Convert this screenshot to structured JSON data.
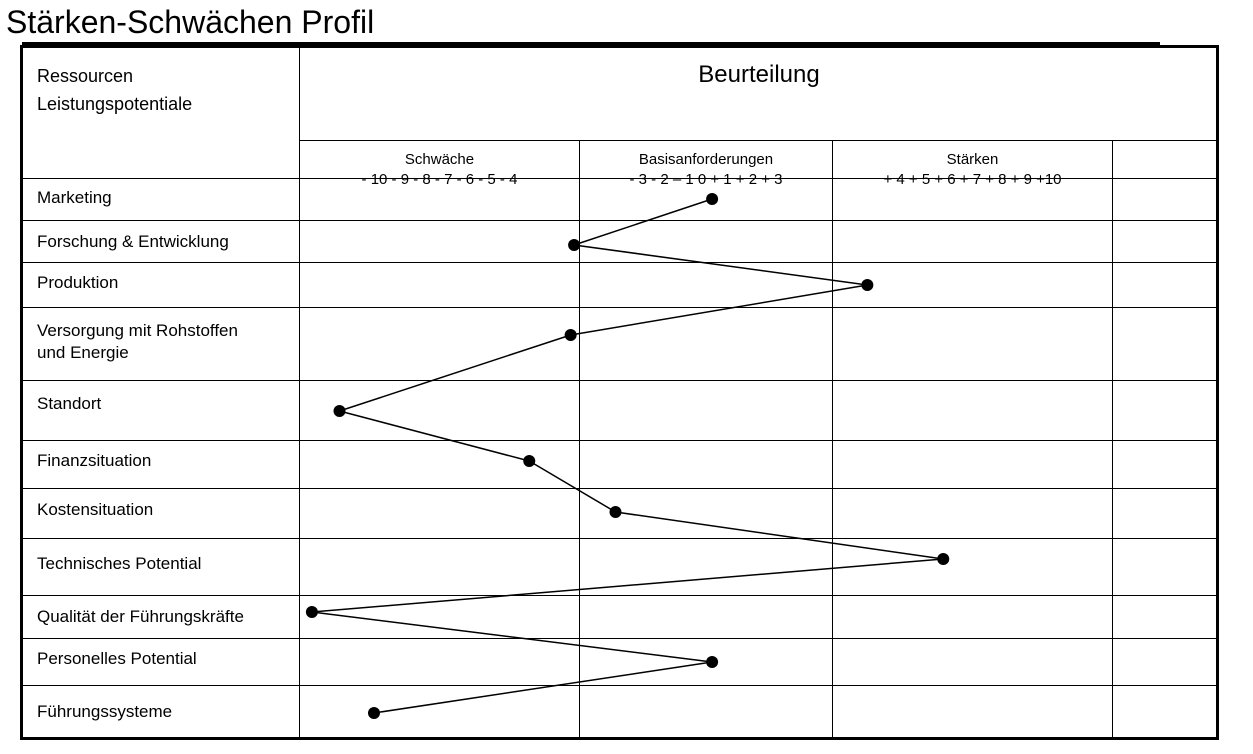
{
  "title": "Stärken-Schwächen Profil",
  "header": {
    "col1_line1": "Ressourcen",
    "col1_line2": "Leistungspotentiale",
    "assessment": "Beurteilung"
  },
  "bands": [
    {
      "label": "Schwäche",
      "scale": "- 10  - 9  - 8  - 7  - 6  - 5  - 4"
    },
    {
      "label": "Basisanforderungen",
      "scale": "- 3  - 2  – 1  0  + 1  + 2  + 3"
    },
    {
      "label": "Stärken",
      "scale": "+ 4  + 5  + 6  + 7  + 8  + 9  +10"
    }
  ],
  "rows": [
    {
      "line1": "Marketing",
      "line2": ""
    },
    {
      "line1": "Forschung & Entwicklung",
      "line2": ""
    },
    {
      "line1": "Produktion",
      "line2": ""
    },
    {
      "line1": "Versorgung mit Rohstoffen",
      "line2": "und Energie"
    },
    {
      "line1": "Standort",
      "line2": ""
    },
    {
      "line1": "Finanzsituation",
      "line2": ""
    },
    {
      "line1": "Kostensituation",
      "line2": ""
    },
    {
      "line1": "Technisches Potential",
      "line2": ""
    },
    {
      "line1": "Qualität der Führungskräfte",
      "line2": ""
    },
    {
      "line1": "Personelles Potential",
      "line2": ""
    },
    {
      "line1": "Führungssysteme",
      "line2": ""
    }
  ],
  "chart_data": {
    "type": "line",
    "title": "Stärken-Schwächen Profil",
    "xlabel": "Beurteilung",
    "ylabel": "Ressourcen Leistungspotentiale",
    "x_range": [
      -10,
      10
    ],
    "categories": [
      "Marketing",
      "Forschung & Entwicklung",
      "Produktion",
      "Versorgung mit Rohstoffen und Energie",
      "Standort",
      "Finanzsituation",
      "Kostensituation",
      "Technisches Potential",
      "Qualität der Führungskräfte",
      "Personelles Potential",
      "Führungssysteme"
    ],
    "values": [
      1.8,
      -2.2,
      6.3,
      -2.3,
      -9.0,
      -3.5,
      -1.0,
      8.5,
      -9.8,
      1.8,
      -8.0
    ],
    "grid": true,
    "marker": "filled-circle",
    "line_color": "#000000"
  }
}
